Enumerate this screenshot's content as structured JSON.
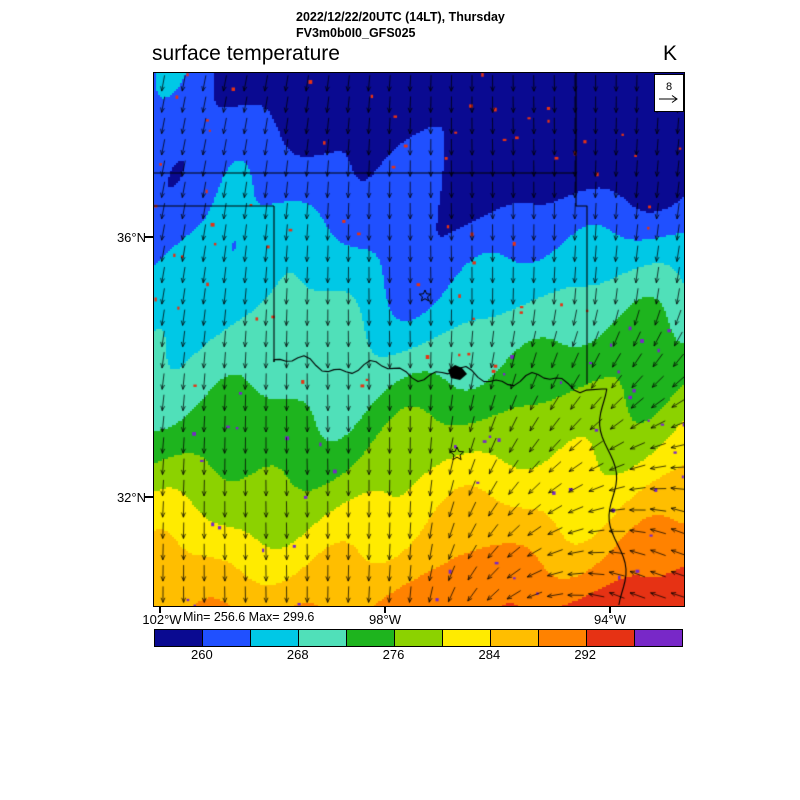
{
  "header": {
    "title_line1": "2022/12/22/20UTC (14LT), Thursday",
    "title_line2": "FV3m0b0I0_GFS025",
    "variable_label": "surface temperature",
    "units_label": "K"
  },
  "wind_reference": {
    "value": "8"
  },
  "axes": {
    "lat": [
      {
        "label": "36°N"
      },
      {
        "label": "32°N"
      }
    ],
    "lon": [
      {
        "label": "102°W"
      },
      {
        "label": "98°W"
      },
      {
        "label": "94°W"
      }
    ]
  },
  "stats": {
    "text": "Min= 256.6 Max= 299.6"
  },
  "colorbar": {
    "segments": [
      "#0a0a91",
      "#2050ff",
      "#00c8e6",
      "#50e0b9",
      "#1eb41e",
      "#8cd200",
      "#ffeb00",
      "#ffbe00",
      "#ff8200",
      "#e63214",
      "#7828c8"
    ],
    "ticks": [
      {
        "label": "260",
        "boundary_index": 1
      },
      {
        "label": "268",
        "boundary_index": 3
      },
      {
        "label": "276",
        "boundary_index": 5
      },
      {
        "label": "284",
        "boundary_index": 7
      },
      {
        "label": "292",
        "boundary_index": 9
      }
    ]
  },
  "chart_data": {
    "type": "heatmap",
    "title": "surface temperature",
    "units": "K",
    "valid_time": "2022/12/22/20UTC (14LT), Thursday",
    "model_run": "FV3m0b0I0_GFS025",
    "min": 256.6,
    "max": 299.6,
    "contour_levels": [
      256,
      260,
      264,
      268,
      272,
      276,
      280,
      284,
      288,
      292,
      296,
      300
    ],
    "palette": [
      "#0a0a91",
      "#2050ff",
      "#00c8e6",
      "#50e0b9",
      "#1eb41e",
      "#8cd200",
      "#ffeb00",
      "#ffbe00",
      "#ff8200",
      "#e63214",
      "#7828c8"
    ],
    "lat_ticks": [
      "36°N",
      "32°N"
    ],
    "lon_ticks": [
      "102°W",
      "98°W",
      "94°W"
    ],
    "wind_reference": 8,
    "wind_overlay": "arrow grid, predominantly northerly flow veering westward in the southeast corner",
    "pattern": "coldest (dark blue, ~256-264 K) in northeast; cyan/teal band across center; green and yellow bands toward southwest; warmest (orange/red, ~288-296 K) along southern edge and southeast corner; scattered red/purple speckles"
  }
}
